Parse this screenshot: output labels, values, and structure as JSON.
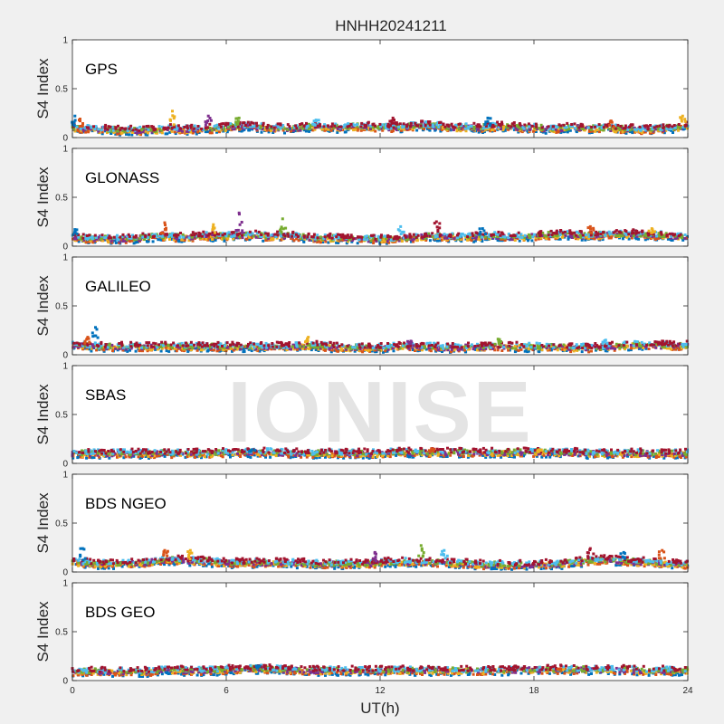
{
  "chart_data": {
    "type": "scatter",
    "title": "HNHH20241211",
    "xlabel": "UT(h)",
    "ylabel": "S4 Index",
    "xlim": [
      0,
      24
    ],
    "ylim": [
      0,
      1
    ],
    "xticks": [
      "0",
      "6",
      "12",
      "18",
      "24"
    ],
    "yticks": [
      "0",
      "0.5",
      "1"
    ],
    "watermark": "IONISE",
    "series_colors": [
      "#0072BD",
      "#D95319",
      "#EDB120",
      "#7E2F8E",
      "#77AC30",
      "#4DBEEE",
      "#A2142F"
    ],
    "panels": [
      {
        "name": "GPS",
        "x": [
          0,
          0.5,
          1,
          1.5,
          2,
          2.5,
          3,
          3.5,
          4,
          4.5,
          5,
          5.5,
          6,
          6.5,
          7,
          7.5,
          8,
          8.5,
          9,
          9.5,
          10,
          10.5,
          11,
          11.5,
          12,
          12.5,
          13,
          13.5,
          14,
          14.5,
          15,
          15.5,
          16,
          16.5,
          17,
          17.5,
          18,
          18.5,
          19,
          19.5,
          20,
          20.5,
          21,
          21.5,
          22,
          22.5,
          23,
          23.5,
          24
        ],
        "typical": [
          0.1,
          0.09,
          0.08,
          0.08,
          0.07,
          0.07,
          0.07,
          0.08,
          0.09,
          0.08,
          0.08,
          0.09,
          0.1,
          0.11,
          0.11,
          0.1,
          0.1,
          0.09,
          0.1,
          0.11,
          0.1,
          0.1,
          0.11,
          0.11,
          0.1,
          0.1,
          0.11,
          0.12,
          0.12,
          0.11,
          0.1,
          0.1,
          0.1,
          0.11,
          0.11,
          0.1,
          0.1,
          0.09,
          0.09,
          0.1,
          0.1,
          0.09,
          0.09,
          0.09,
          0.08,
          0.08,
          0.09,
          0.1,
          0.12
        ],
        "peaks": [
          [
            0.1,
            0.22
          ],
          [
            0.3,
            0.19
          ],
          [
            3.9,
            0.27
          ],
          [
            5.3,
            0.22
          ],
          [
            6.5,
            0.2
          ],
          [
            9.5,
            0.18
          ],
          [
            12.5,
            0.2
          ],
          [
            16.2,
            0.2
          ],
          [
            21.0,
            0.17
          ],
          [
            23.8,
            0.22
          ]
        ]
      },
      {
        "name": "GLONASS",
        "x": [
          0,
          0.5,
          1,
          1.5,
          2,
          2.5,
          3,
          3.5,
          4,
          4.5,
          5,
          5.5,
          6,
          6.5,
          7,
          7.5,
          8,
          8.5,
          9,
          9.5,
          10,
          10.5,
          11,
          11.5,
          12,
          12.5,
          13,
          13.5,
          14,
          14.5,
          15,
          15.5,
          16,
          16.5,
          17,
          17.5,
          18,
          18.5,
          19,
          19.5,
          20,
          20.5,
          21,
          21.5,
          22,
          22.5,
          23,
          23.5,
          24
        ],
        "typical": [
          0.09,
          0.08,
          0.08,
          0.07,
          0.07,
          0.08,
          0.09,
          0.1,
          0.09,
          0.09,
          0.1,
          0.1,
          0.1,
          0.11,
          0.11,
          0.1,
          0.1,
          0.1,
          0.09,
          0.08,
          0.08,
          0.08,
          0.07,
          0.07,
          0.07,
          0.07,
          0.08,
          0.09,
          0.1,
          0.1,
          0.09,
          0.09,
          0.1,
          0.1,
          0.09,
          0.09,
          0.1,
          0.11,
          0.12,
          0.11,
          0.1,
          0.11,
          0.12,
          0.12,
          0.12,
          0.11,
          0.11,
          0.1,
          0.1
        ],
        "peaks": [
          [
            0.1,
            0.17
          ],
          [
            3.6,
            0.24
          ],
          [
            5.5,
            0.22
          ],
          [
            6.5,
            0.34
          ],
          [
            8.2,
            0.28
          ],
          [
            12.8,
            0.2
          ],
          [
            14.2,
            0.25
          ],
          [
            16.0,
            0.18
          ],
          [
            20.2,
            0.2
          ],
          [
            22.6,
            0.18
          ]
        ]
      },
      {
        "name": "GALILEO",
        "x": [
          0,
          0.5,
          1,
          1.5,
          2,
          2.5,
          3,
          3.5,
          4,
          4.5,
          5,
          5.5,
          6,
          6.5,
          7,
          7.5,
          8,
          8.5,
          9,
          9.5,
          10,
          10.5,
          11,
          11.5,
          12,
          12.5,
          13,
          13.5,
          14,
          14.5,
          15,
          15.5,
          16,
          16.5,
          17,
          17.5,
          18,
          18.5,
          19,
          19.5,
          20,
          20.5,
          21,
          21.5,
          22,
          22.5,
          23,
          23.5,
          24
        ],
        "typical": [
          0.1,
          0.09,
          0.08,
          0.08,
          0.08,
          0.08,
          0.08,
          0.08,
          0.08,
          0.08,
          0.08,
          0.08,
          0.08,
          0.08,
          0.08,
          0.08,
          0.08,
          0.08,
          0.09,
          0.09,
          0.08,
          0.07,
          0.07,
          0.07,
          0.07,
          0.08,
          0.08,
          0.08,
          0.08,
          0.07,
          0.07,
          0.08,
          0.08,
          0.08,
          0.08,
          0.08,
          0.08,
          0.08,
          0.08,
          0.07,
          0.07,
          0.07,
          0.08,
          0.09,
          0.1,
          0.1,
          0.09,
          0.09,
          0.09
        ],
        "peaks": [
          [
            0.9,
            0.28
          ],
          [
            0.6,
            0.18
          ],
          [
            9.2,
            0.18
          ],
          [
            13.2,
            0.14
          ],
          [
            16.6,
            0.16
          ],
          [
            20.8,
            0.15
          ],
          [
            23.0,
            0.14
          ]
        ]
      },
      {
        "name": "SBAS",
        "x": [
          0,
          0.5,
          1,
          1.5,
          2,
          2.5,
          3,
          3.5,
          4,
          4.5,
          5,
          5.5,
          6,
          6.5,
          7,
          7.5,
          8,
          8.5,
          9,
          9.5,
          10,
          10.5,
          11,
          11.5,
          12,
          12.5,
          13,
          13.5,
          14,
          14.5,
          15,
          15.5,
          16,
          16.5,
          17,
          17.5,
          18,
          18.5,
          19,
          19.5,
          20,
          20.5,
          21,
          21.5,
          22,
          22.5,
          23,
          23.5,
          24
        ],
        "typical": [
          0.1,
          0.1,
          0.1,
          0.1,
          0.1,
          0.1,
          0.1,
          0.1,
          0.1,
          0.1,
          0.1,
          0.1,
          0.11,
          0.11,
          0.11,
          0.11,
          0.11,
          0.1,
          0.1,
          0.1,
          0.1,
          0.1,
          0.1,
          0.1,
          0.1,
          0.11,
          0.11,
          0.11,
          0.11,
          0.11,
          0.11,
          0.11,
          0.11,
          0.11,
          0.11,
          0.11,
          0.11,
          0.11,
          0.11,
          0.11,
          0.1,
          0.1,
          0.1,
          0.1,
          0.1,
          0.1,
          0.1,
          0.1,
          0.1
        ],
        "peaks": [
          [
            7.0,
            0.14
          ],
          [
            14.0,
            0.15
          ],
          [
            18.2,
            0.14
          ]
        ]
      },
      {
        "name": "BDS NGEO",
        "x": [
          0,
          0.5,
          1,
          1.5,
          2,
          2.5,
          3,
          3.5,
          4,
          4.5,
          5,
          5.5,
          6,
          6.5,
          7,
          7.5,
          8,
          8.5,
          9,
          9.5,
          10,
          10.5,
          11,
          11.5,
          12,
          12.5,
          13,
          13.5,
          14,
          14.5,
          15,
          15.5,
          16,
          16.5,
          17,
          17.5,
          18,
          18.5,
          19,
          19.5,
          20,
          20.5,
          21,
          21.5,
          22,
          22.5,
          23,
          23.5,
          24
        ],
        "typical": [
          0.1,
          0.09,
          0.08,
          0.08,
          0.08,
          0.09,
          0.1,
          0.12,
          0.12,
          0.11,
          0.11,
          0.1,
          0.09,
          0.09,
          0.09,
          0.09,
          0.09,
          0.09,
          0.09,
          0.08,
          0.08,
          0.08,
          0.08,
          0.08,
          0.09,
          0.1,
          0.1,
          0.1,
          0.1,
          0.09,
          0.09,
          0.08,
          0.07,
          0.07,
          0.07,
          0.07,
          0.07,
          0.08,
          0.08,
          0.09,
          0.11,
          0.12,
          0.12,
          0.11,
          0.1,
          0.1,
          0.09,
          0.08,
          0.07
        ],
        "peaks": [
          [
            0.4,
            0.24
          ],
          [
            3.6,
            0.22
          ],
          [
            4.6,
            0.22
          ],
          [
            11.8,
            0.2
          ],
          [
            13.6,
            0.27
          ],
          [
            14.5,
            0.22
          ],
          [
            20.2,
            0.24
          ],
          [
            21.5,
            0.2
          ],
          [
            23.0,
            0.22
          ]
        ]
      },
      {
        "name": "BDS GEO",
        "x": [
          0,
          0.5,
          1,
          1.5,
          2,
          2.5,
          3,
          3.5,
          4,
          4.5,
          5,
          5.5,
          6,
          6.5,
          7,
          7.5,
          8,
          8.5,
          9,
          9.5,
          10,
          10.5,
          11,
          11.5,
          12,
          12.5,
          13,
          13.5,
          14,
          14.5,
          15,
          15.5,
          16,
          16.5,
          17,
          17.5,
          18,
          18.5,
          19,
          19.5,
          20,
          20.5,
          21,
          21.5,
          22,
          22.5,
          23,
          23.5,
          24
        ],
        "typical": [
          0.09,
          0.09,
          0.09,
          0.09,
          0.09,
          0.09,
          0.09,
          0.1,
          0.1,
          0.1,
          0.1,
          0.1,
          0.11,
          0.11,
          0.12,
          0.12,
          0.11,
          0.11,
          0.1,
          0.1,
          0.1,
          0.1,
          0.1,
          0.1,
          0.1,
          0.1,
          0.1,
          0.1,
          0.1,
          0.1,
          0.1,
          0.1,
          0.1,
          0.1,
          0.1,
          0.11,
          0.11,
          0.11,
          0.11,
          0.11,
          0.11,
          0.11,
          0.11,
          0.11,
          0.1,
          0.1,
          0.1,
          0.1,
          0.1
        ],
        "peaks": [
          [
            7.2,
            0.15
          ],
          [
            19.0,
            0.12
          ]
        ]
      }
    ]
  }
}
